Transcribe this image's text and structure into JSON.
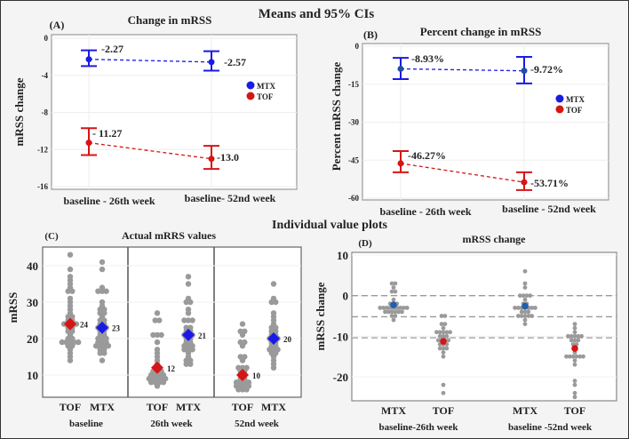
{
  "headings": {
    "top": "Means and 95% CIs",
    "middle": "Individual value plots"
  },
  "colors": {
    "MTX": "#1a1ae6",
    "TOF": "#d61515",
    "dots": "#9a9a9a",
    "mtx_mean_D": "#1f5fb0"
  },
  "chart_data": [
    {
      "panel": "(A)",
      "type": "line",
      "title": "Change in mRSS",
      "ylabel": "mRSS change",
      "categories": [
        "baseline - 26th week",
        "baseline- 52nd week"
      ],
      "yticks": [
        "0",
        "-4",
        "-8",
        "-12",
        "-16"
      ],
      "ylim": [
        -16,
        0
      ],
      "grid": true,
      "legend": {
        "position": "right",
        "entries": [
          "MTX",
          "TOF"
        ]
      },
      "series": [
        {
          "name": "MTX",
          "values": [
            -2.27,
            -2.57
          ],
          "ci_low": [
            -3.0,
            -3.5
          ],
          "ci_high": [
            -1.3,
            -1.4
          ],
          "labels": [
            "-2.27",
            "-2.57"
          ]
        },
        {
          "name": "TOF",
          "values": [
            -11.27,
            -13.0
          ],
          "ci_low": [
            -12.6,
            -14.1
          ],
          "ci_high": [
            -9.7,
            -11.6
          ],
          "labels": [
            "- 11.27",
            "-13.0"
          ]
        }
      ]
    },
    {
      "panel": "(B)",
      "type": "line",
      "title": "Percent change in mRSS",
      "ylabel": "Percent  mRSS change",
      "categories": [
        "baseline - 26th week",
        "baseline - 52nd week"
      ],
      "yticks": [
        "0",
        "-15",
        "-30",
        "-45",
        "-60"
      ],
      "ylim": [
        -60,
        0
      ],
      "grid": true,
      "legend": {
        "position": "right",
        "entries": [
          "MTX",
          "TOF"
        ]
      },
      "series": [
        {
          "name": "MTX",
          "values": [
            -8.93,
            -9.72
          ],
          "ci_low": [
            -13.0,
            -14.7
          ],
          "ci_high": [
            -4.6,
            -4.2
          ],
          "labels": [
            "-8.93%",
            "-9.72%"
          ]
        },
        {
          "name": "TOF",
          "values": [
            -46.27,
            -53.71
          ],
          "ci_low": [
            -49.8,
            -56.8
          ],
          "ci_high": [
            -41.4,
            -49.8
          ],
          "labels": [
            "-46.27%",
            "-53.71%"
          ]
        }
      ]
    },
    {
      "panel": "(C)",
      "type": "scatter",
      "title": "Actual mRRS values",
      "ylabel": "mRSS",
      "yticks": [
        "10",
        "20",
        "30",
        "40"
      ],
      "ylim": [
        4,
        45
      ],
      "facets": [
        "baseline",
        "26th week",
        "52nd week"
      ],
      "groups": [
        {
          "facet": "baseline",
          "name": "TOF",
          "mean": 24,
          "mean_label": "24",
          "values": [
            43,
            39,
            37,
            36,
            35,
            34,
            33,
            33,
            31,
            30,
            29,
            28,
            27,
            26,
            26,
            25,
            25,
            24,
            24,
            24,
            24,
            23,
            23,
            22,
            22,
            21,
            20,
            20,
            19,
            19,
            19,
            19,
            19,
            18,
            18,
            17,
            16,
            15,
            14
          ]
        },
        {
          "facet": "baseline",
          "name": "MTX",
          "mean": 23,
          "mean_label": "23",
          "values": [
            41,
            39,
            34,
            33,
            33,
            33,
            30,
            29,
            28,
            28,
            27,
            27,
            26,
            25,
            25,
            24,
            24,
            23,
            23,
            23,
            22,
            22,
            21,
            21,
            20,
            20,
            20,
            19,
            19,
            19,
            18,
            18,
            18,
            18,
            17,
            17,
            16,
            16,
            14
          ]
        },
        {
          "facet": "26th week",
          "name": "TOF",
          "mean": 12,
          "mean_label": "12",
          "values": [
            27,
            25,
            25,
            21,
            21,
            21,
            19,
            17,
            16,
            15,
            14,
            13,
            12,
            12,
            11,
            11,
            11,
            10,
            10,
            10,
            10,
            9,
            9,
            9,
            9,
            9,
            8,
            8,
            8,
            8,
            7
          ]
        },
        {
          "facet": "26th week",
          "name": "MTX",
          "mean": 21,
          "mean_label": "21",
          "values": [
            37,
            35,
            31,
            30,
            30,
            28,
            27,
            25,
            25,
            25,
            23,
            23,
            22,
            22,
            21,
            21,
            21,
            20,
            20,
            19,
            19,
            18,
            18,
            18,
            17,
            17,
            17,
            16,
            15,
            14,
            14,
            13,
            13
          ]
        },
        {
          "facet": "52nd week",
          "name": "TOF",
          "mean": 10,
          "mean_label": "10",
          "values": [
            24,
            22,
            22,
            21,
            19,
            19,
            18,
            15,
            15,
            14,
            12,
            12,
            12,
            11,
            11,
            10,
            10,
            9,
            9,
            8,
            8,
            8,
            8,
            7,
            7,
            7,
            7,
            6,
            6,
            6
          ]
        },
        {
          "facet": "52nd week",
          "name": "MTX",
          "mean": 20,
          "mean_label": "20",
          "values": [
            35,
            31,
            30,
            30,
            27,
            26,
            25,
            24,
            23,
            23,
            22,
            22,
            21,
            21,
            20,
            20,
            20,
            19,
            19,
            18,
            18,
            17,
            17,
            17,
            16,
            16,
            15,
            14,
            13,
            12
          ]
        }
      ]
    },
    {
      "panel": "(D)",
      "type": "scatter",
      "title": "mRSS change",
      "ylabel": "mRSS change",
      "yticks": [
        "10",
        "0",
        "-10",
        "-20"
      ],
      "ylim": [
        -26,
        11
      ],
      "reference_lines": [
        0,
        -5.2,
        -10.4
      ],
      "facets": [
        "baseline-26th week",
        "baseline -52nd week"
      ],
      "groups": [
        {
          "facet": "baseline-26th week",
          "name": "MTX",
          "mean": -2.27,
          "values": [
            3,
            3,
            2,
            1,
            1,
            -1,
            -2,
            -2,
            -2,
            -3,
            -3,
            -3,
            -3,
            -3,
            -3,
            -3,
            -3,
            -3,
            -4,
            -4,
            -4,
            -4,
            -4,
            -4,
            -5,
            -5,
            -6
          ]
        },
        {
          "facet": "baseline-26th week",
          "name": "TOF",
          "mean": -11.27,
          "values": [
            -5,
            -5,
            -7,
            -7,
            -8,
            -9,
            -9,
            -9,
            -9,
            -9,
            -10,
            -10,
            -10,
            -11,
            -11,
            -11,
            -11,
            -12,
            -12,
            -12,
            -13,
            -13,
            -13,
            -14,
            -15,
            -22,
            -24
          ]
        },
        {
          "facet": "baseline -52nd week",
          "name": "MTX",
          "mean": -2.57,
          "values": [
            6,
            3,
            2,
            0,
            0,
            0,
            0,
            -1,
            -2,
            -2,
            -3,
            -3,
            -3,
            -3,
            -3,
            -3,
            -3,
            -4,
            -4,
            -4,
            -5,
            -5,
            -5,
            -5,
            -5,
            -6,
            -7
          ]
        },
        {
          "facet": "baseline -52nd week",
          "name": "TOF",
          "mean": -13.0,
          "values": [
            -7,
            -8,
            -9,
            -10,
            -10,
            -10,
            -10,
            -10,
            -11,
            -11,
            -11,
            -12,
            -12,
            -13,
            -14,
            -15,
            -15,
            -15,
            -15,
            -15,
            -15,
            -16,
            -17,
            -21,
            -22,
            -24,
            -25
          ]
        }
      ]
    }
  ]
}
